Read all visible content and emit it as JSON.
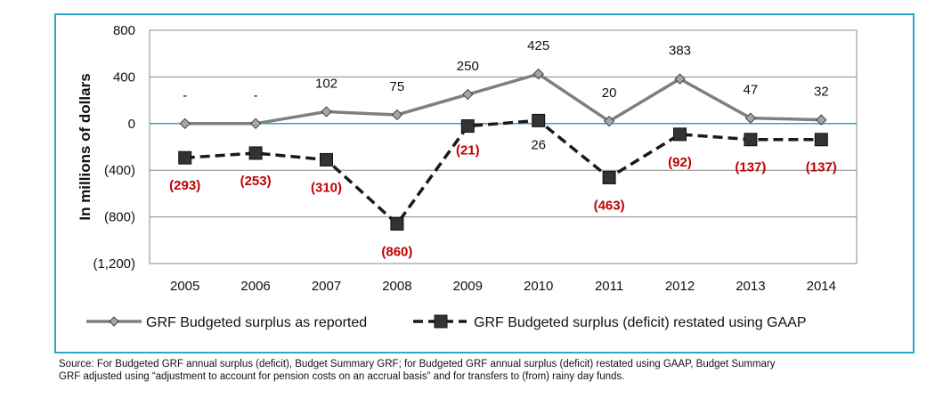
{
  "chart_data": {
    "type": "line",
    "title": "",
    "xlabel": "",
    "ylabel": "In millions of dollars",
    "ylim": [
      -1200,
      800
    ],
    "yticks": [
      800,
      400,
      0,
      -400,
      -800,
      -1200
    ],
    "ytick_labels": [
      "800",
      "400",
      "0",
      "(400)",
      "(800)",
      "(1,200)"
    ],
    "categories": [
      "2005",
      "2006",
      "2007",
      "2008",
      "2009",
      "2010",
      "2011",
      "2012",
      "2013",
      "2014"
    ],
    "grid": true,
    "legend_position": "bottom",
    "series": [
      {
        "name": "GRF Budgeted surplus as reported",
        "values": [
          0,
          0,
          102,
          75,
          250,
          425,
          20,
          383,
          47,
          32
        ],
        "labels": [
          "-",
          "-",
          "102",
          "75",
          "250",
          "425",
          "20",
          "383",
          "47",
          "32"
        ],
        "color": "#7f7f7f",
        "style": "solid",
        "marker": "diamond"
      },
      {
        "name": "GRF Budgeted surplus (deficit) restated using GAAP",
        "values": [
          -293,
          -253,
          -310,
          -860,
          -21,
          26,
          -463,
          -92,
          -137,
          -137
        ],
        "labels": [
          "(293)",
          "(253)",
          "(310)",
          "(860)",
          "(21)",
          "26",
          "(463)",
          "(92)",
          "(137)",
          "(137)"
        ],
        "label_colors": [
          "#c00000",
          "#c00000",
          "#c00000",
          "#c00000",
          "#c00000",
          "#111111",
          "#c00000",
          "#c00000",
          "#c00000",
          "#c00000"
        ],
        "color": "#1a1a1a",
        "style": "dashed",
        "marker": "square"
      }
    ]
  },
  "footnote": {
    "line1": "Source: For Budgeted GRF annual surplus (deficit), Budget Summary GRF; for Budgeted GRF annual surplus (deficit) restated using GAAP, Budget Summary",
    "line2": "GRF adjusted using “adjustment to account for pension costs on an accrual basis” and for transfers to (from) rainy day funds."
  }
}
